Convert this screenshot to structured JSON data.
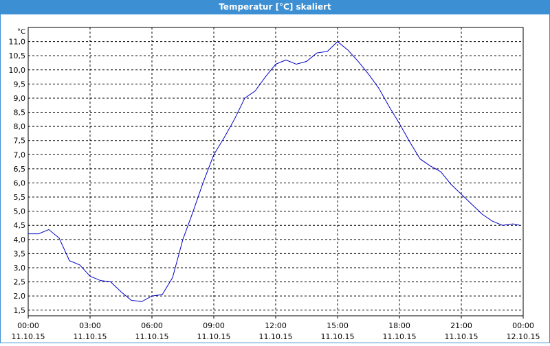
{
  "chart_data": {
    "type": "line",
    "title": "Temperatur [°C] skaliert",
    "y_label": "°C",
    "x": [
      "2015-10-11 00:00",
      "2015-10-11 00:30",
      "2015-10-11 01:00",
      "2015-10-11 01:30",
      "2015-10-11 02:00",
      "2015-10-11 02:30",
      "2015-10-11 03:00",
      "2015-10-11 03:30",
      "2015-10-11 04:00",
      "2015-10-11 04:30",
      "2015-10-11 05:00",
      "2015-10-11 05:30",
      "2015-10-11 06:00",
      "2015-10-11 06:30",
      "2015-10-11 07:00",
      "2015-10-11 07:30",
      "2015-10-11 08:00",
      "2015-10-11 08:30",
      "2015-10-11 09:00",
      "2015-10-11 09:30",
      "2015-10-11 10:00",
      "2015-10-11 10:30",
      "2015-10-11 11:00",
      "2015-10-11 11:30",
      "2015-10-11 12:00",
      "2015-10-11 12:30",
      "2015-10-11 13:00",
      "2015-10-11 13:30",
      "2015-10-11 14:00",
      "2015-10-11 14:30",
      "2015-10-11 15:00",
      "2015-10-11 15:30",
      "2015-10-11 16:00",
      "2015-10-11 16:30",
      "2015-10-11 17:00",
      "2015-10-11 17:30",
      "2015-10-11 18:00",
      "2015-10-11 18:30",
      "2015-10-11 19:00",
      "2015-10-11 19:30",
      "2015-10-11 20:00",
      "2015-10-11 20:30",
      "2015-10-11 21:00",
      "2015-10-11 21:30",
      "2015-10-11 22:00",
      "2015-10-11 22:30",
      "2015-10-11 23:00",
      "2015-10-11 23:30",
      "2015-10-11 23:50"
    ],
    "series": [
      {
        "name": "Temperatur",
        "color": "#0000c8",
        "values": [
          4.2,
          4.2,
          4.35,
          4.05,
          3.25,
          3.1,
          2.7,
          2.55,
          2.5,
          2.15,
          1.85,
          1.8,
          2.0,
          2.05,
          2.65,
          4.0,
          5.0,
          6.05,
          7.0,
          7.6,
          8.25,
          9.0,
          9.25,
          9.75,
          10.2,
          10.35,
          10.2,
          10.3,
          10.6,
          10.65,
          11.0,
          10.7,
          10.3,
          9.85,
          9.35,
          8.7,
          8.1,
          7.45,
          6.85,
          6.6,
          6.4,
          5.95,
          5.6,
          5.25,
          4.9,
          4.65,
          4.5,
          4.55,
          4.5
        ]
      }
    ],
    "xlim": [
      "2015-10-11 00:00",
      "2015-10-12 00:00"
    ],
    "xticks": [
      {
        "value": "2015-10-11 00:00",
        "label": [
          "00:00",
          "11.10.15"
        ]
      },
      {
        "value": "2015-10-11 03:00",
        "label": [
          "03:00",
          "11.10.15"
        ]
      },
      {
        "value": "2015-10-11 06:00",
        "label": [
          "06:00",
          "11.10.15"
        ]
      },
      {
        "value": "2015-10-11 09:00",
        "label": [
          "09:00",
          "11.10.15"
        ]
      },
      {
        "value": "2015-10-11 12:00",
        "label": [
          "12:00",
          "11.10.15"
        ]
      },
      {
        "value": "2015-10-11 15:00",
        "label": [
          "15:00",
          "11.10.15"
        ]
      },
      {
        "value": "2015-10-11 18:00",
        "label": [
          "18:00",
          "11.10.15"
        ]
      },
      {
        "value": "2015-10-11 21:00",
        "label": [
          "21:00",
          "11.10.15"
        ]
      },
      {
        "value": "2015-10-12 00:00",
        "label": [
          "00:00",
          "12.10.15"
        ]
      }
    ],
    "ylim": [
      1.3,
      11.5
    ],
    "yticks": [
      {
        "value": 1.5,
        "label": "1,5"
      },
      {
        "value": 2,
        "label": "2,0"
      },
      {
        "value": 2.5,
        "label": "2,5"
      },
      {
        "value": 3,
        "label": "3,0"
      },
      {
        "value": 3.5,
        "label": "3,5"
      },
      {
        "value": 4,
        "label": "4,0"
      },
      {
        "value": 4.5,
        "label": "4,5"
      },
      {
        "value": 5,
        "label": "5,0"
      },
      {
        "value": 5.5,
        "label": "5,5"
      },
      {
        "value": 6,
        "label": "6,0"
      },
      {
        "value": 6.5,
        "label": "6,5"
      },
      {
        "value": 7,
        "label": "7,0"
      },
      {
        "value": 7.5,
        "label": "7,5"
      },
      {
        "value": 8,
        "label": "8,0"
      },
      {
        "value": 8.5,
        "label": "8,5"
      },
      {
        "value": 9,
        "label": "9,0"
      },
      {
        "value": 9.5,
        "label": "9,5"
      },
      {
        "value": 10,
        "label": "10,0"
      },
      {
        "value": 10.5,
        "label": "10,5"
      },
      {
        "value": 11,
        "label": "11,0"
      }
    ],
    "grid": true
  }
}
